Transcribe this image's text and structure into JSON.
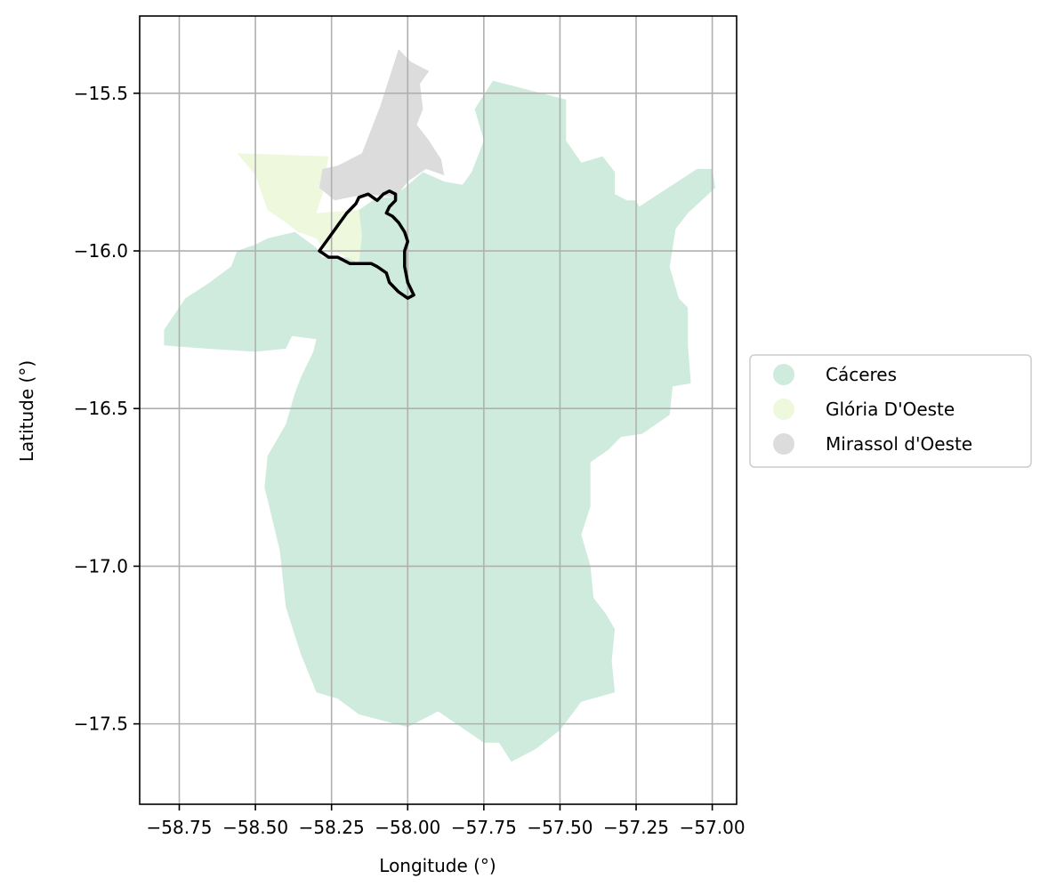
{
  "chart_data": {
    "type": "map",
    "xlabel": "Longitude (°)",
    "ylabel": "Latitude (°)",
    "xlim": [
      -58.88,
      -56.92
    ],
    "ylim": [
      -17.755,
      -15.255
    ],
    "grid": true,
    "legend_placement": "right",
    "x_ticks": [
      {
        "value": -58.75,
        "label": "−58.75"
      },
      {
        "value": -58.5,
        "label": "−58.50"
      },
      {
        "value": -58.25,
        "label": "−58.25"
      },
      {
        "value": -58.0,
        "label": "−58.00"
      },
      {
        "value": -57.75,
        "label": "−57.75"
      },
      {
        "value": -57.5,
        "label": "−57.50"
      },
      {
        "value": -57.25,
        "label": "−57.25"
      },
      {
        "value": -57.0,
        "label": "−57.00"
      }
    ],
    "y_ticks": [
      {
        "value": -15.5,
        "label": "−15.5"
      },
      {
        "value": -16.0,
        "label": "−16.0"
      },
      {
        "value": -16.5,
        "label": "−16.5"
      },
      {
        "value": -17.0,
        "label": "−17.0"
      },
      {
        "value": -17.5,
        "label": "−17.5"
      }
    ],
    "regions": [
      {
        "name": "Cáceres",
        "color": "#ceebdd",
        "polygon": [
          [
            -57.72,
            -15.46
          ],
          [
            -57.48,
            -15.52
          ],
          [
            -57.48,
            -15.65
          ],
          [
            -57.43,
            -15.72
          ],
          [
            -57.36,
            -15.7
          ],
          [
            -57.32,
            -15.75
          ],
          [
            -57.32,
            -15.82
          ],
          [
            -57.28,
            -15.84
          ],
          [
            -57.25,
            -15.84
          ],
          [
            -57.24,
            -15.86
          ],
          [
            -57.05,
            -15.74
          ],
          [
            -57.0,
            -15.74
          ],
          [
            -56.99,
            -15.8
          ],
          [
            -57.08,
            -15.88
          ],
          [
            -57.12,
            -15.93
          ],
          [
            -57.14,
            -16.05
          ],
          [
            -57.11,
            -16.15
          ],
          [
            -57.08,
            -16.18
          ],
          [
            -57.08,
            -16.3
          ],
          [
            -57.07,
            -16.42
          ],
          [
            -57.13,
            -16.43
          ],
          [
            -57.14,
            -16.52
          ],
          [
            -57.23,
            -16.58
          ],
          [
            -57.3,
            -16.59
          ],
          [
            -57.34,
            -16.63
          ],
          [
            -57.4,
            -16.67
          ],
          [
            -57.4,
            -16.81
          ],
          [
            -57.43,
            -16.9
          ],
          [
            -57.4,
            -17.0
          ],
          [
            -57.39,
            -17.1
          ],
          [
            -57.35,
            -17.15
          ],
          [
            -57.32,
            -17.2
          ],
          [
            -57.33,
            -17.3
          ],
          [
            -57.32,
            -17.4
          ],
          [
            -57.43,
            -17.43
          ],
          [
            -57.5,
            -17.52
          ],
          [
            -57.58,
            -17.58
          ],
          [
            -57.66,
            -17.62
          ],
          [
            -57.7,
            -17.56
          ],
          [
            -57.75,
            -17.56
          ],
          [
            -57.9,
            -17.46
          ],
          [
            -58.0,
            -17.51
          ],
          [
            -58.16,
            -17.47
          ],
          [
            -58.23,
            -17.42
          ],
          [
            -58.3,
            -17.4
          ],
          [
            -58.35,
            -17.28
          ],
          [
            -58.4,
            -17.13
          ],
          [
            -58.42,
            -16.95
          ],
          [
            -58.47,
            -16.75
          ],
          [
            -58.46,
            -16.65
          ],
          [
            -58.4,
            -16.55
          ],
          [
            -58.37,
            -16.45
          ],
          [
            -58.35,
            -16.4
          ],
          [
            -58.31,
            -16.32
          ],
          [
            -58.3,
            -16.28
          ],
          [
            -58.38,
            -16.27
          ],
          [
            -58.4,
            -16.31
          ],
          [
            -58.5,
            -16.32
          ],
          [
            -58.66,
            -16.31
          ],
          [
            -58.8,
            -16.3
          ],
          [
            -58.8,
            -16.25
          ],
          [
            -58.73,
            -16.15
          ],
          [
            -58.65,
            -16.1
          ],
          [
            -58.58,
            -16.05
          ],
          [
            -58.56,
            -16.0
          ],
          [
            -58.5,
            -15.98
          ],
          [
            -58.46,
            -15.96
          ],
          [
            -58.37,
            -15.94
          ],
          [
            -58.3,
            -15.99
          ],
          [
            -58.28,
            -16.02
          ],
          [
            -58.18,
            -16.02
          ],
          [
            -58.16,
            -15.95
          ],
          [
            -58.16,
            -15.87
          ],
          [
            -58.1,
            -15.83
          ],
          [
            -58.05,
            -15.83
          ],
          [
            -58.01,
            -15.8
          ],
          [
            -57.95,
            -15.75
          ],
          [
            -57.88,
            -15.78
          ],
          [
            -57.82,
            -15.79
          ],
          [
            -57.79,
            -15.75
          ],
          [
            -57.75,
            -15.65
          ],
          [
            -57.78,
            -15.55
          ],
          [
            -57.72,
            -15.46
          ]
        ]
      },
      {
        "name": "Glória D'Oeste",
        "color": "#eef8dc",
        "polygon": [
          [
            -58.56,
            -15.69
          ],
          [
            -58.26,
            -15.7
          ],
          [
            -58.28,
            -15.82
          ],
          [
            -58.3,
            -15.88
          ],
          [
            -58.16,
            -15.87
          ],
          [
            -58.15,
            -15.95
          ],
          [
            -58.16,
            -16.04
          ],
          [
            -58.22,
            -16.01
          ],
          [
            -58.28,
            -15.99
          ],
          [
            -58.3,
            -15.96
          ],
          [
            -58.36,
            -15.94
          ],
          [
            -58.4,
            -15.91
          ],
          [
            -58.46,
            -15.87
          ],
          [
            -58.5,
            -15.76
          ],
          [
            -58.56,
            -15.69
          ]
        ]
      },
      {
        "name": "Mirassol d'Oeste",
        "color": "#dcdcdc",
        "polygon": [
          [
            -58.03,
            -15.36
          ],
          [
            -57.99,
            -15.4
          ],
          [
            -57.93,
            -15.43
          ],
          [
            -57.96,
            -15.47
          ],
          [
            -57.95,
            -15.55
          ],
          [
            -57.97,
            -15.6
          ],
          [
            -57.93,
            -15.65
          ],
          [
            -57.89,
            -15.71
          ],
          [
            -57.88,
            -15.76
          ],
          [
            -57.94,
            -15.74
          ],
          [
            -58.0,
            -15.78
          ],
          [
            -58.04,
            -15.83
          ],
          [
            -58.14,
            -15.82
          ],
          [
            -58.24,
            -15.84
          ],
          [
            -58.29,
            -15.8
          ],
          [
            -58.28,
            -15.74
          ],
          [
            -58.23,
            -15.73
          ],
          [
            -58.15,
            -15.69
          ],
          [
            -58.09,
            -15.54
          ],
          [
            -58.03,
            -15.36
          ]
        ]
      }
    ],
    "outline": {
      "color": "#000000",
      "polygon": [
        [
          -58.29,
          -16.0
        ],
        [
          -58.26,
          -15.96
        ],
        [
          -58.23,
          -15.92
        ],
        [
          -58.2,
          -15.88
        ],
        [
          -58.17,
          -15.85
        ],
        [
          -58.16,
          -15.83
        ],
        [
          -58.13,
          -15.82
        ],
        [
          -58.1,
          -15.84
        ],
        [
          -58.08,
          -15.82
        ],
        [
          -58.06,
          -15.81
        ],
        [
          -58.04,
          -15.82
        ],
        [
          -58.04,
          -15.84
        ],
        [
          -58.06,
          -15.86
        ],
        [
          -58.07,
          -15.88
        ],
        [
          -58.05,
          -15.89
        ],
        [
          -58.03,
          -15.91
        ],
        [
          -58.01,
          -15.94
        ],
        [
          -58.0,
          -15.97
        ],
        [
          -58.01,
          -16.0
        ],
        [
          -58.01,
          -16.05
        ],
        [
          -58.0,
          -16.1
        ],
        [
          -57.98,
          -16.14
        ],
        [
          -58.0,
          -16.15
        ],
        [
          -58.03,
          -16.13
        ],
        [
          -58.06,
          -16.1
        ],
        [
          -58.07,
          -16.07
        ],
        [
          -58.1,
          -16.05
        ],
        [
          -58.12,
          -16.04
        ],
        [
          -58.15,
          -16.04
        ],
        [
          -58.19,
          -16.04
        ],
        [
          -58.23,
          -16.02
        ],
        [
          -58.26,
          -16.02
        ],
        [
          -58.29,
          -16.0
        ]
      ]
    }
  }
}
